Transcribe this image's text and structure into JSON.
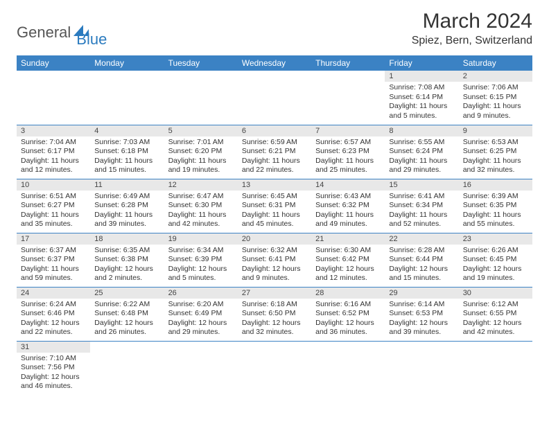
{
  "logo": {
    "text1": "General",
    "text2": "Blue"
  },
  "title": "March 2024",
  "location": "Spiez, Bern, Switzerland",
  "colors": {
    "header_bg": "#3b82c4",
    "header_text": "#ffffff",
    "daybar_bg": "#e8e8e8",
    "row_border": "#3b82c4",
    "logo_gray": "#555555",
    "logo_blue": "#2b7bbf",
    "text": "#333333",
    "background": "#ffffff"
  },
  "weekdays": [
    "Sunday",
    "Monday",
    "Tuesday",
    "Wednesday",
    "Thursday",
    "Friday",
    "Saturday"
  ],
  "weeks": [
    [
      null,
      null,
      null,
      null,
      null,
      {
        "n": "1",
        "sunrise": "Sunrise: 7:08 AM",
        "sunset": "Sunset: 6:14 PM",
        "daylight": "Daylight: 11 hours and 5 minutes."
      },
      {
        "n": "2",
        "sunrise": "Sunrise: 7:06 AM",
        "sunset": "Sunset: 6:15 PM",
        "daylight": "Daylight: 11 hours and 9 minutes."
      }
    ],
    [
      {
        "n": "3",
        "sunrise": "Sunrise: 7:04 AM",
        "sunset": "Sunset: 6:17 PM",
        "daylight": "Daylight: 11 hours and 12 minutes."
      },
      {
        "n": "4",
        "sunrise": "Sunrise: 7:03 AM",
        "sunset": "Sunset: 6:18 PM",
        "daylight": "Daylight: 11 hours and 15 minutes."
      },
      {
        "n": "5",
        "sunrise": "Sunrise: 7:01 AM",
        "sunset": "Sunset: 6:20 PM",
        "daylight": "Daylight: 11 hours and 19 minutes."
      },
      {
        "n": "6",
        "sunrise": "Sunrise: 6:59 AM",
        "sunset": "Sunset: 6:21 PM",
        "daylight": "Daylight: 11 hours and 22 minutes."
      },
      {
        "n": "7",
        "sunrise": "Sunrise: 6:57 AM",
        "sunset": "Sunset: 6:23 PM",
        "daylight": "Daylight: 11 hours and 25 minutes."
      },
      {
        "n": "8",
        "sunrise": "Sunrise: 6:55 AM",
        "sunset": "Sunset: 6:24 PM",
        "daylight": "Daylight: 11 hours and 29 minutes."
      },
      {
        "n": "9",
        "sunrise": "Sunrise: 6:53 AM",
        "sunset": "Sunset: 6:25 PM",
        "daylight": "Daylight: 11 hours and 32 minutes."
      }
    ],
    [
      {
        "n": "10",
        "sunrise": "Sunrise: 6:51 AM",
        "sunset": "Sunset: 6:27 PM",
        "daylight": "Daylight: 11 hours and 35 minutes."
      },
      {
        "n": "11",
        "sunrise": "Sunrise: 6:49 AM",
        "sunset": "Sunset: 6:28 PM",
        "daylight": "Daylight: 11 hours and 39 minutes."
      },
      {
        "n": "12",
        "sunrise": "Sunrise: 6:47 AM",
        "sunset": "Sunset: 6:30 PM",
        "daylight": "Daylight: 11 hours and 42 minutes."
      },
      {
        "n": "13",
        "sunrise": "Sunrise: 6:45 AM",
        "sunset": "Sunset: 6:31 PM",
        "daylight": "Daylight: 11 hours and 45 minutes."
      },
      {
        "n": "14",
        "sunrise": "Sunrise: 6:43 AM",
        "sunset": "Sunset: 6:32 PM",
        "daylight": "Daylight: 11 hours and 49 minutes."
      },
      {
        "n": "15",
        "sunrise": "Sunrise: 6:41 AM",
        "sunset": "Sunset: 6:34 PM",
        "daylight": "Daylight: 11 hours and 52 minutes."
      },
      {
        "n": "16",
        "sunrise": "Sunrise: 6:39 AM",
        "sunset": "Sunset: 6:35 PM",
        "daylight": "Daylight: 11 hours and 55 minutes."
      }
    ],
    [
      {
        "n": "17",
        "sunrise": "Sunrise: 6:37 AM",
        "sunset": "Sunset: 6:37 PM",
        "daylight": "Daylight: 11 hours and 59 minutes."
      },
      {
        "n": "18",
        "sunrise": "Sunrise: 6:35 AM",
        "sunset": "Sunset: 6:38 PM",
        "daylight": "Daylight: 12 hours and 2 minutes."
      },
      {
        "n": "19",
        "sunrise": "Sunrise: 6:34 AM",
        "sunset": "Sunset: 6:39 PM",
        "daylight": "Daylight: 12 hours and 5 minutes."
      },
      {
        "n": "20",
        "sunrise": "Sunrise: 6:32 AM",
        "sunset": "Sunset: 6:41 PM",
        "daylight": "Daylight: 12 hours and 9 minutes."
      },
      {
        "n": "21",
        "sunrise": "Sunrise: 6:30 AM",
        "sunset": "Sunset: 6:42 PM",
        "daylight": "Daylight: 12 hours and 12 minutes."
      },
      {
        "n": "22",
        "sunrise": "Sunrise: 6:28 AM",
        "sunset": "Sunset: 6:44 PM",
        "daylight": "Daylight: 12 hours and 15 minutes."
      },
      {
        "n": "23",
        "sunrise": "Sunrise: 6:26 AM",
        "sunset": "Sunset: 6:45 PM",
        "daylight": "Daylight: 12 hours and 19 minutes."
      }
    ],
    [
      {
        "n": "24",
        "sunrise": "Sunrise: 6:24 AM",
        "sunset": "Sunset: 6:46 PM",
        "daylight": "Daylight: 12 hours and 22 minutes."
      },
      {
        "n": "25",
        "sunrise": "Sunrise: 6:22 AM",
        "sunset": "Sunset: 6:48 PM",
        "daylight": "Daylight: 12 hours and 26 minutes."
      },
      {
        "n": "26",
        "sunrise": "Sunrise: 6:20 AM",
        "sunset": "Sunset: 6:49 PM",
        "daylight": "Daylight: 12 hours and 29 minutes."
      },
      {
        "n": "27",
        "sunrise": "Sunrise: 6:18 AM",
        "sunset": "Sunset: 6:50 PM",
        "daylight": "Daylight: 12 hours and 32 minutes."
      },
      {
        "n": "28",
        "sunrise": "Sunrise: 6:16 AM",
        "sunset": "Sunset: 6:52 PM",
        "daylight": "Daylight: 12 hours and 36 minutes."
      },
      {
        "n": "29",
        "sunrise": "Sunrise: 6:14 AM",
        "sunset": "Sunset: 6:53 PM",
        "daylight": "Daylight: 12 hours and 39 minutes."
      },
      {
        "n": "30",
        "sunrise": "Sunrise: 6:12 AM",
        "sunset": "Sunset: 6:55 PM",
        "daylight": "Daylight: 12 hours and 42 minutes."
      }
    ],
    [
      {
        "n": "31",
        "sunrise": "Sunrise: 7:10 AM",
        "sunset": "Sunset: 7:56 PM",
        "daylight": "Daylight: 12 hours and 46 minutes."
      },
      null,
      null,
      null,
      null,
      null,
      null
    ]
  ]
}
